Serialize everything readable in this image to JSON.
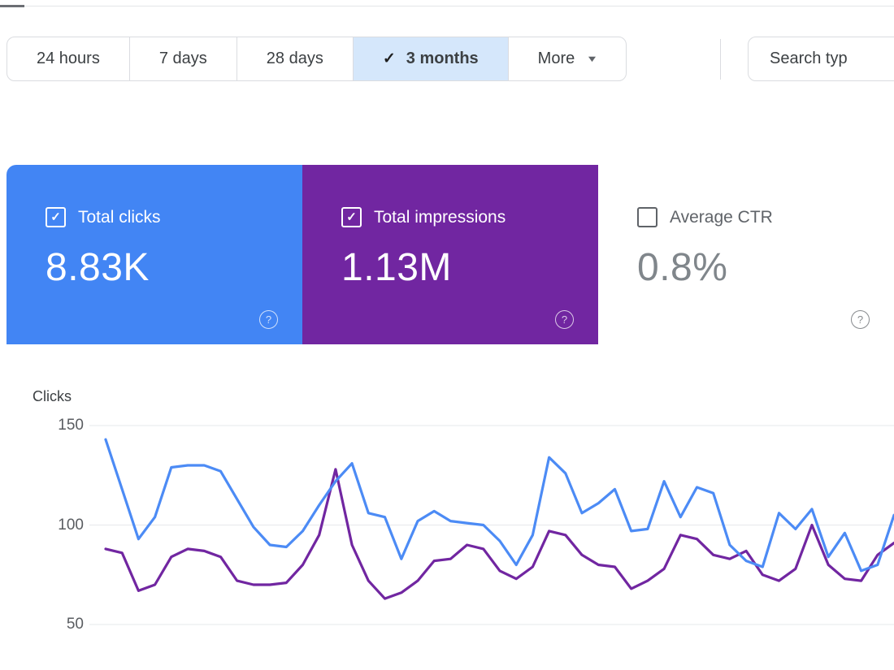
{
  "topbar": {
    "chips": [
      {
        "label": "24 hours",
        "selected": false,
        "has_dropdown": false
      },
      {
        "label": "7 days",
        "selected": false,
        "has_dropdown": false
      },
      {
        "label": "28 days",
        "selected": false,
        "has_dropdown": false
      },
      {
        "label": "3 months",
        "selected": true,
        "has_dropdown": false
      },
      {
        "label": "More",
        "selected": false,
        "has_dropdown": true
      }
    ],
    "search_type_button": "Search typ"
  },
  "cards": [
    {
      "label": "Total clicks",
      "value": "8.83K",
      "checked": true,
      "bg": "#4285f4",
      "fg": "#ffffff"
    },
    {
      "label": "Total impressions",
      "value": "1.13M",
      "checked": true,
      "bg": "#7126a1",
      "fg": "#ffffff"
    },
    {
      "label": "Average CTR",
      "value": "0.8%",
      "checked": false,
      "bg": "#ffffff",
      "fg": "#5f6368",
      "value_color": "#80868b"
    }
  ],
  "chart_data": {
    "type": "line",
    "title": "Clicks",
    "yticks": [
      150,
      100,
      50
    ],
    "ylim": [
      40,
      160
    ],
    "grid": true,
    "legend": "none (colors match metric cards)",
    "x": "daily points over 3 months",
    "series": [
      {
        "name": "Total clicks",
        "color": "#4c8bf5",
        "values": [
          143,
          118,
          93,
          104,
          129,
          130,
          130,
          127,
          113,
          99,
          90,
          89,
          97,
          110,
          122,
          131,
          106,
          104,
          83,
          102,
          107,
          102,
          101,
          100,
          92,
          80,
          95,
          134,
          126,
          106,
          111,
          118,
          97,
          98,
          122,
          104,
          119,
          116,
          90,
          82,
          79,
          106,
          98,
          108,
          84,
          96,
          77,
          80,
          105
        ]
      },
      {
        "name": "Total impressions",
        "color": "#7126a1",
        "values": [
          88,
          86,
          67,
          70,
          84,
          88,
          87,
          84,
          72,
          70,
          70,
          71,
          80,
          95,
          128,
          90,
          72,
          63,
          66,
          72,
          82,
          83,
          90,
          88,
          77,
          73,
          79,
          97,
          95,
          85,
          80,
          79,
          68,
          72,
          78,
          95,
          93,
          85,
          83,
          87,
          75,
          72,
          78,
          100,
          80,
          73,
          72,
          85,
          91
        ]
      }
    ]
  }
}
